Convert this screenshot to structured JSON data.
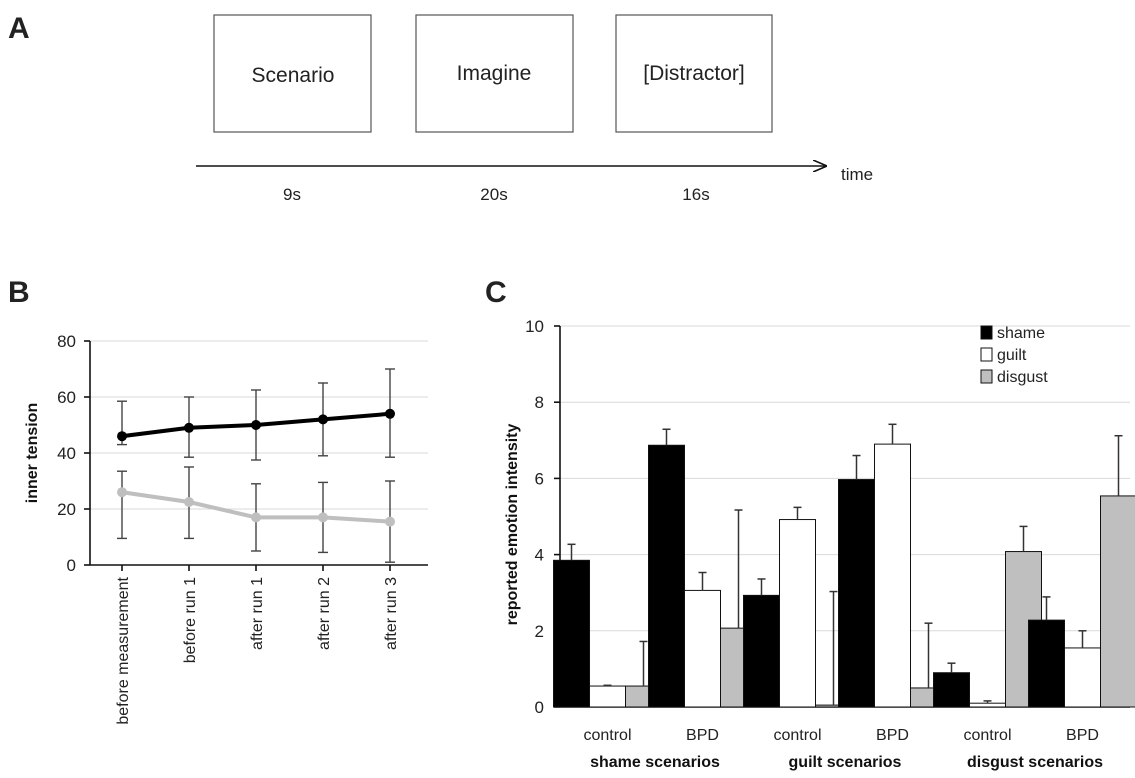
{
  "panels": {
    "a": {
      "letter": "A",
      "boxes": [
        {
          "label": "Scenario",
          "duration": "9s"
        },
        {
          "label": "Imagine",
          "duration": "20s"
        },
        {
          "label": "[Distractor]",
          "duration": "16s"
        }
      ],
      "axis_label": "time"
    },
    "b": {
      "letter": "B"
    },
    "c": {
      "letter": "C"
    }
  },
  "chart_data": [
    {
      "type": "line",
      "title": "",
      "ylabel": "inner tension",
      "xlabel": "",
      "ylim": [
        0,
        80
      ],
      "yticks": [
        0,
        20,
        40,
        60,
        80
      ],
      "grid": true,
      "categories": [
        "before measurement",
        "before run 1",
        "after run 1",
        "after run 2",
        "after run 3"
      ],
      "series": [
        {
          "color": "#000000",
          "values": [
            46,
            49,
            50,
            52,
            54
          ],
          "err_low": [
            43,
            38.5,
            37.5,
            39,
            38.5
          ],
          "err_high": [
            58.5,
            60,
            62.5,
            65,
            70
          ]
        },
        {
          "color": "#bfbfbf",
          "values": [
            26,
            22.5,
            17,
            17,
            15.5
          ],
          "err_low": [
            9.5,
            9.5,
            5,
            4.5,
            1
          ],
          "err_high": [
            33.5,
            35,
            29,
            29.5,
            30
          ]
        }
      ]
    },
    {
      "type": "bar",
      "title": "",
      "ylabel": "reported emotion intensity",
      "xlabel": "",
      "ylim": [
        0,
        10
      ],
      "yticks": [
        0,
        2,
        4,
        6,
        8,
        10
      ],
      "grid": true,
      "legend_position": "top-right",
      "groups": [
        {
          "label": "shame scenarios",
          "categories": [
            "control",
            "BPD"
          ]
        },
        {
          "label": "guilt scenarios",
          "categories": [
            "control",
            "BPD"
          ]
        },
        {
          "label": "disgust scenarios",
          "categories": [
            "control",
            "BPD"
          ]
        }
      ],
      "categories": [
        "control",
        "BPD",
        "control",
        "BPD",
        "control",
        "BPD"
      ],
      "series": [
        {
          "name": "shame",
          "color": "#000000",
          "values": [
            3.85,
            6.87,
            2.93,
            5.97,
            0.9,
            2.28
          ],
          "err": [
            0.42,
            0.42,
            0.43,
            0.63,
            0.25,
            0.61
          ]
        },
        {
          "name": "guilt",
          "color": "#ffffff",
          "values": [
            0.55,
            3.06,
            4.92,
            6.9,
            0.1,
            1.55
          ],
          "err": [
            0.02,
            0.47,
            0.32,
            0.52,
            0.06,
            0.45
          ]
        },
        {
          "name": "disgust",
          "color": "#bfbfbf",
          "values": [
            0.55,
            2.07,
            0.05,
            0.5,
            4.08,
            5.54
          ],
          "err": [
            1.17,
            3.1,
            2.98,
            1.7,
            0.66,
            1.58
          ]
        }
      ]
    }
  ]
}
